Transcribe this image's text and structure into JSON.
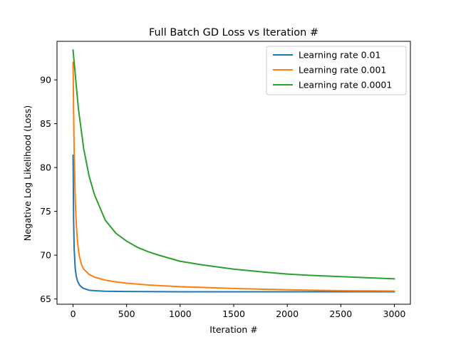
{
  "chart_data": {
    "type": "line",
    "title": "Full Batch GD Loss vs Iteration #",
    "xlabel": "Iteration #",
    "ylabel": "Negative Log Likelihood (Loss)",
    "xlim": [
      -150,
      3150
    ],
    "ylim": [
      64.4,
      94.4
    ],
    "xticks": [
      0,
      500,
      1000,
      1500,
      2000,
      2500,
      3000
    ],
    "yticks": [
      65,
      70,
      75,
      80,
      85,
      90
    ],
    "grid": false,
    "legend_position": "top-right",
    "series": [
      {
        "name": "Learning rate 0.01",
        "color": "#1f77b4",
        "x": [
          0,
          5,
          10,
          20,
          30,
          40,
          60,
          80,
          100,
          150,
          200,
          300,
          500,
          1000,
          1500,
          2000,
          2500,
          3000
        ],
        "y": [
          81.4,
          74.2,
          70.8,
          68.5,
          67.6,
          67.1,
          66.6,
          66.35,
          66.2,
          66.0,
          65.95,
          65.88,
          65.85,
          65.82,
          65.82,
          65.82,
          65.82,
          65.82
        ]
      },
      {
        "name": "Learning rate 0.001",
        "color": "#ff7f0e",
        "x": [
          0,
          5,
          10,
          20,
          30,
          40,
          50,
          60,
          80,
          100,
          150,
          200,
          300,
          400,
          500,
          700,
          1000,
          1500,
          2000,
          2500,
          3000
        ],
        "y": [
          92.0,
          86.5,
          82.0,
          76.5,
          73.6,
          71.8,
          70.6,
          69.8,
          68.9,
          68.4,
          67.8,
          67.5,
          67.15,
          66.95,
          66.8,
          66.6,
          66.4,
          66.2,
          66.05,
          65.95,
          65.9
        ]
      },
      {
        "name": "Learning rate 0.0001",
        "color": "#2ca02c",
        "x": [
          0,
          25,
          50,
          100,
          150,
          200,
          300,
          400,
          500,
          600,
          700,
          800,
          1000,
          1200,
          1500,
          1800,
          2000,
          2200,
          2500,
          2800,
          3000
        ],
        "y": [
          93.4,
          90.0,
          86.7,
          82.1,
          79.0,
          76.9,
          74.0,
          72.5,
          71.6,
          70.9,
          70.4,
          70.0,
          69.3,
          68.9,
          68.4,
          68.05,
          67.85,
          67.7,
          67.55,
          67.4,
          67.3
        ]
      }
    ]
  }
}
